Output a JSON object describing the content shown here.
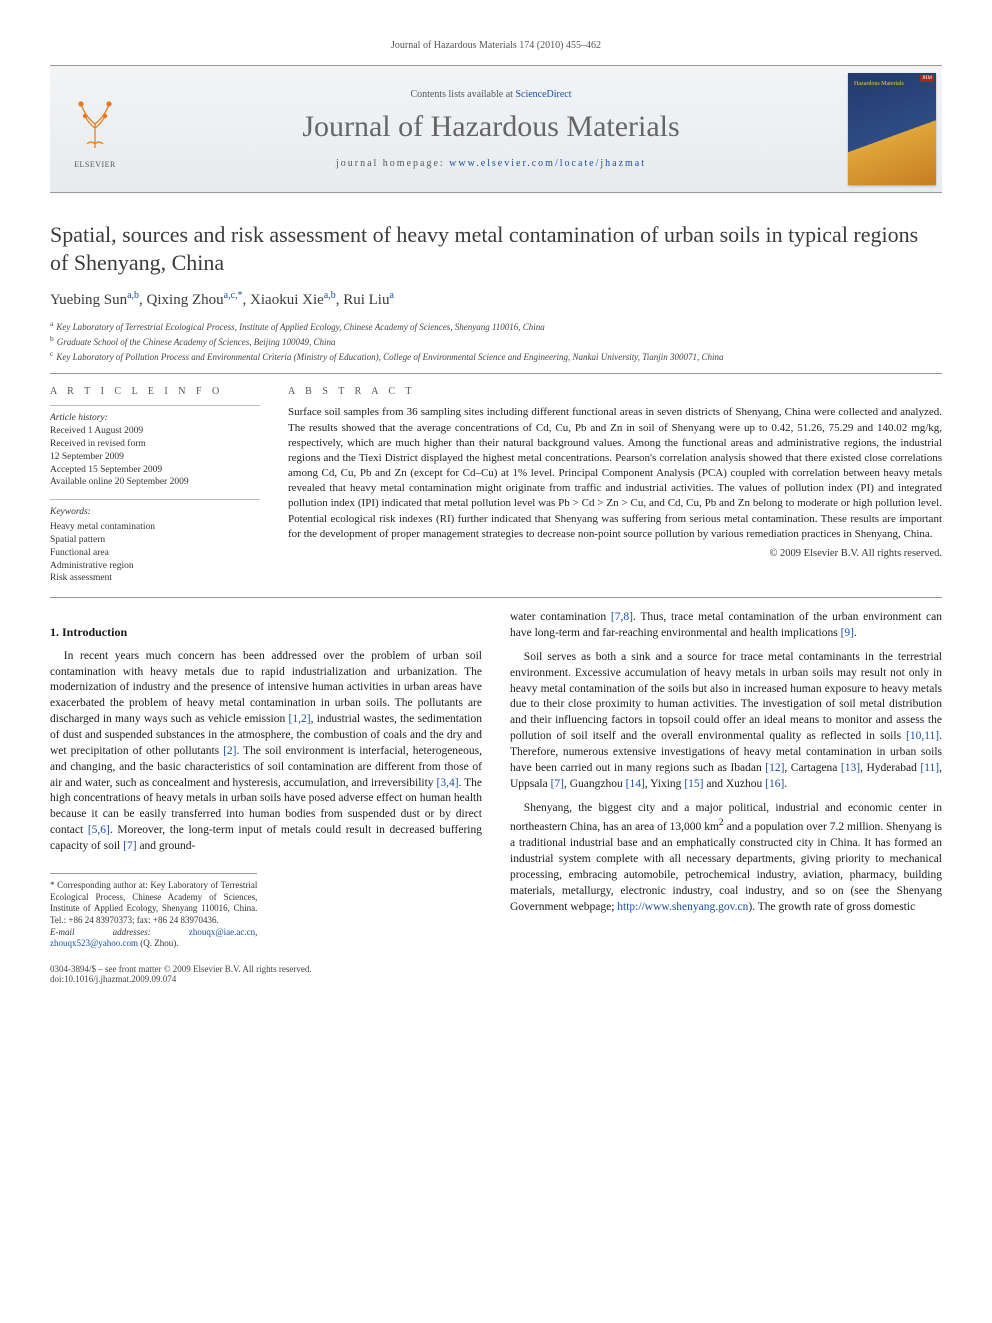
{
  "running_head": "Journal of Hazardous Materials 174 (2010) 455–462",
  "masthead": {
    "contents_prefix": "Contents lists available at ",
    "contents_link_text": "ScienceDirect",
    "journal_name": "Journal of Hazardous Materials",
    "homepage_prefix": "journal homepage: ",
    "homepage_url": "www.elsevier.com/locate/jhazmat",
    "publisher_logo_text": "ELSEVIER",
    "cover_label": "Hazardous Materials"
  },
  "article": {
    "title": "Spatial, sources and risk assessment of heavy metal contamination of urban soils in typical regions of Shenyang, China",
    "authors_html": "Yuebing Sun<sup>a,b</sup>, Qixing Zhou<sup>a,c,*</sup>, Xiaokui Xie<sup>a,b</sup>, Rui Liu<sup>a</sup>",
    "affiliations": [
      {
        "key": "a",
        "text": "Key Laboratory of Terrestrial Ecological Process, Institute of Applied Ecology, Chinese Academy of Sciences, Shenyang 110016, China"
      },
      {
        "key": "b",
        "text": "Graduate School of the Chinese Academy of Sciences, Beijing 100049, China"
      },
      {
        "key": "c",
        "text": "Key Laboratory of Pollution Process and Environmental Criteria (Ministry of Education), College of Environmental Science and Engineering, Nankai University, Tianjin 300071, China"
      }
    ]
  },
  "info": {
    "section_label": "A R T I C L E   I N F O",
    "history_label": "Article history:",
    "history": [
      "Received 1 August 2009",
      "Received in revised form",
      "12 September 2009",
      "Accepted 15 September 2009",
      "Available online 20 September 2009"
    ],
    "keywords_label": "Keywords:",
    "keywords": [
      "Heavy metal contamination",
      "Spatial pattern",
      "Functional area",
      "Administrative region",
      "Risk assessment"
    ]
  },
  "abstract": {
    "section_label": "A B S T R A C T",
    "text": "Surface soil samples from 36 sampling sites including different functional areas in seven districts of Shenyang, China were collected and analyzed. The results showed that the average concentrations of Cd, Cu, Pb and Zn in soil of Shenyang were up to 0.42, 51.26, 75.29 and 140.02 mg/kg, respectively, which are much higher than their natural background values. Among the functional areas and administrative regions, the industrial regions and the Tiexi District displayed the highest metal concentrations. Pearson's correlation analysis showed that there existed close correlations among Cd, Cu, Pb and Zn (except for Cd–Cu) at 1% level. Principal Component Analysis (PCA) coupled with correlation between heavy metals revealed that heavy metal contamination might originate from traffic and industrial activities. The values of pollution index (PI) and integrated pollution index (IPI) indicated that metal pollution level was Pb > Cd > Zn > Cu, and Cd, Cu, Pb and Zn belong to moderate or high pollution level. Potential ecological risk indexes (RI) further indicated that Shenyang was suffering from serious metal contamination. These results are important for the development of proper management strategies to decrease non-point source pollution by various remediation practices in Shenyang, China.",
    "copyright": "© 2009 Elsevier B.V. All rights reserved."
  },
  "body": {
    "intro_heading": "1. Introduction",
    "p1": "In recent years much concern has been addressed over the problem of urban soil contamination with heavy metals due to rapid industrialization and urbanization. The modernization of industry and the presence of intensive human activities in urban areas have exacerbated the problem of heavy metal contamination in urban soils. The pollutants are discharged in many ways such as vehicle emission [1,2], industrial wastes, the sedimentation of dust and suspended substances in the atmosphere, the combustion of coals and the dry and wet precipitation of other pollutants [2]. The soil environment is interfacial, heterogeneous, and changing, and the basic characteristics of soil contamination are different from those of air and water, such as concealment and hysteresis, accumulation, and irreversibility [3,4]. The high concentrations of heavy metals in urban soils have posed adverse effect on human health because it can be easily transferred into human bodies from suspended dust or by direct contact [5,6]. Moreover, the long-term input of metals could result in decreased buffering capacity of soil [7] and ground-",
    "p1b": "water contamination [7,8]. Thus, trace metal contamination of the urban environment can have long-term and far-reaching environmental and health implications [9].",
    "p2": "Soil serves as both a sink and a source for trace metal contaminants in the terrestrial environment. Excessive accumulation of heavy metals in urban soils may result not only in heavy metal contamination of the soils but also in increased human exposure to heavy metals due to their close proximity to human activities. The investigation of soil metal distribution and their influencing factors in topsoil could offer an ideal means to monitor and assess the pollution of soil itself and the overall environmental quality as reflected in soils [10,11]. Therefore, numerous extensive investigations of heavy metal contamination in urban soils have been carried out in many regions such as Ibadan [12], Cartagena [13], Hyderabad [11], Uppsala [7], Guangzhou [14], Yixing [15] and Xuzhou [16].",
    "p3a": "Shenyang, the biggest city and a major political, industrial and economic center in northeastern China, has an area of 13,000 km",
    "p3b": " and a population over 7.2 million. Shenyang is a traditional industrial base and an emphatically constructed city in China. It has formed an industrial system complete with all necessary departments, giving priority to mechanical processing, embracing automobile, petrochemical industry, aviation, pharmacy, building materials, metallurgy, electronic industry, coal industry, and so on (see the Shenyang Government webpage; ",
    "p3_link": "http://www.shenyang.gov.cn",
    "p3c": "). The growth rate of gross domestic"
  },
  "footnote": {
    "corr_label": "* Corresponding author at: Key Laboratory of Terrestrial Ecological Process, Chinese Academy of Sciences, Institute of Applied Ecology, Shenyang 110016, China. Tel.: +86 24 83970373; fax: +86 24 83970436.",
    "email_label": "E-mail addresses: ",
    "email1": "zhouqx@iae.ac.cn",
    "email_sep": ", ",
    "email2": "zhouqx523@yahoo.com",
    "email_tail": " (Q. Zhou)."
  },
  "pagefoot": {
    "left": "0304-3894/$ – see front matter © 2009 Elsevier B.V. All rights reserved.",
    "doi": "doi:10.1016/j.jhazmat.2009.09.074"
  },
  "colors": {
    "link": "#1a4fa3",
    "elsevier_orange": "#e67a17",
    "rule": "#999999",
    "text": "#1a1a1a"
  }
}
